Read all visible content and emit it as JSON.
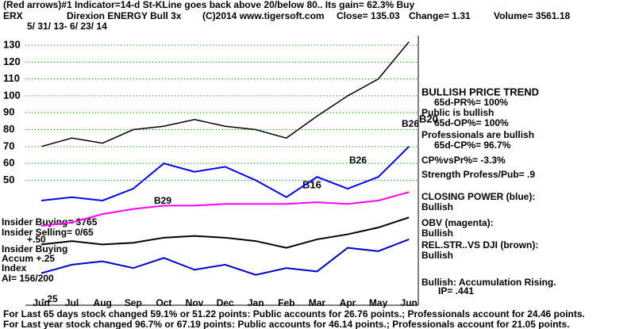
{
  "chart_data": {
    "type": "line",
    "title": "(Red arrows)#1 Indicator=14-d St-KLine goes back above 20/below 80.. Its gain= 62.3% Buy",
    "ticker": "ERX",
    "subtitle": "Direxion ENERGY Bull 3x",
    "source": "(C)2014 www.tigersoft.com",
    "close": "Close= 135.03",
    "change": "Change= 1.31",
    "volume": "Volume= 3561.18",
    "date_range": "5/ 31/ 13- 6/ 23/ 14",
    "categories": [
      "Jun",
      "Jul",
      "Aug",
      "Sep",
      "Oct",
      "Nov",
      "Dec",
      "Jan",
      "Feb",
      "Mar",
      "Apr",
      "May",
      "Jun"
    ],
    "ylim": [
      -24,
      138
    ],
    "yticks": [
      50,
      60,
      70,
      80,
      90,
      100,
      110,
      120,
      130
    ],
    "grid": true,
    "series": [
      {
        "color": "#000000",
        "values": [
          70,
          75,
          72,
          80,
          82,
          86,
          82,
          80,
          75,
          88,
          100,
          110,
          132
        ]
      },
      {
        "name": "CLOSING POWER (blue):",
        "color": "#0000ff",
        "values": [
          38,
          40,
          38,
          45,
          60,
          55,
          58,
          50,
          40,
          52,
          45,
          52,
          70
        ]
      },
      {
        "name": "OBV (magenta):",
        "color": "#ff00ff",
        "values": [
          23,
          25,
          30,
          33,
          35,
          35,
          36,
          36,
          36,
          37,
          36,
          38,
          43
        ]
      },
      {
        "name": "REL.STR..VS DJI (brown):",
        "color": "#000000",
        "values": [
          12,
          14,
          12,
          13,
          16,
          17,
          16,
          14,
          10,
          15,
          18,
          22,
          28
        ]
      },
      {
        "color": "#0000cc",
        "values": [
          -5,
          0,
          2,
          -2,
          4,
          -3,
          0,
          -6,
          -2,
          -4,
          10,
          8,
          15
        ]
      }
    ],
    "annotations": [
      "BULLISH PRICE TREND",
      "65d-PR%= 100%",
      "Public is bullish",
      "65d-OP%= 100%",
      "Professionals are bullish",
      "65d-CP%= 96.7%",
      "CP%vsPr%= -3.3%",
      "Strength Profess/Pub= .9",
      "Bullish",
      "Bullish",
      "Bullish",
      "Bullish: Accumulation Rising.",
      "IP= .441",
      "Insider Buying= 3765",
      "Insider Selling= 0/65",
      "+.50",
      "Insider Buying",
      "Accum +.25",
      "Index",
      "AI= 156/200",
      "-.25",
      "B26",
      "B26",
      "B16",
      "B29",
      "B20"
    ],
    "footer": [
      "For Last 65 days stock changed  59.1% or  51.22 points:  Public accounts for  26.76 points.;  Professionals account for  24.46 points.",
      "For Last year stock changed  96.7% or  67.19 points:  Public accounts for  46.14 points.;  Professionals account for  21.05 points."
    ]
  }
}
